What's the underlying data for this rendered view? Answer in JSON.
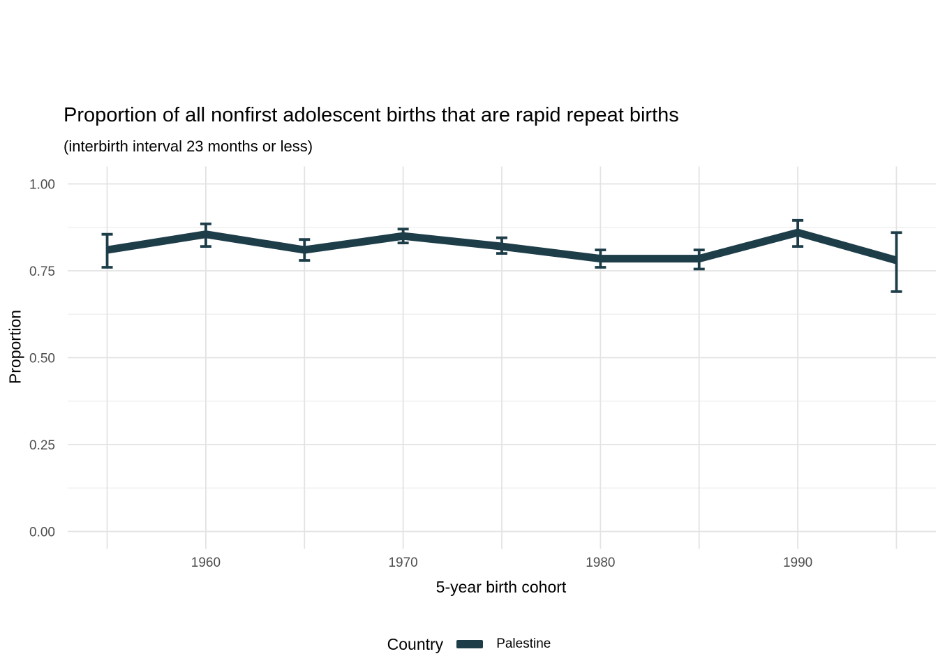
{
  "chart_data": {
    "type": "line",
    "title": "Proportion of all nonfirst adolescent births that are rapid repeat births",
    "subtitle": "(interbirth interval 23 months or less)",
    "xlabel": "5-year birth cohort",
    "ylabel": "Proportion",
    "xlim": [
      1953,
      1997
    ],
    "ylim": [
      0,
      1
    ],
    "grid": "on",
    "legend_position": "bottom",
    "x": [
      1955,
      1960,
      1965,
      1970,
      1975,
      1980,
      1985,
      1990,
      1995
    ],
    "series": [
      {
        "name": "Palestine",
        "color": "#1d3d49",
        "values": [
          0.81,
          0.855,
          0.81,
          0.85,
          0.82,
          0.785,
          0.785,
          0.86,
          0.78
        ],
        "ci_low": [
          0.76,
          0.82,
          0.78,
          0.83,
          0.8,
          0.76,
          0.755,
          0.82,
          0.69
        ],
        "ci_high": [
          0.855,
          0.885,
          0.84,
          0.87,
          0.845,
          0.81,
          0.81,
          0.895,
          0.86
        ]
      }
    ],
    "x_axis": {
      "gridline_years": [
        1955,
        1960,
        1965,
        1970,
        1975,
        1980,
        1985,
        1990,
        1995
      ],
      "tick_years": [
        1960,
        1970,
        1980,
        1990
      ],
      "tick_labels": [
        "1960",
        "1970",
        "1980",
        "1990"
      ]
    },
    "y_axis": {
      "tick_values": [
        0,
        0.25,
        0.5,
        0.75,
        1.0
      ],
      "tick_labels": [
        "0.00",
        "0.25",
        "0.50",
        "0.75",
        "1.00"
      ],
      "minor_values": [
        0.125,
        0.375,
        0.625,
        0.875
      ]
    },
    "legend": {
      "title": "Country",
      "entries": [
        {
          "label": "Palestine",
          "color": "#1d3d49"
        }
      ]
    }
  }
}
